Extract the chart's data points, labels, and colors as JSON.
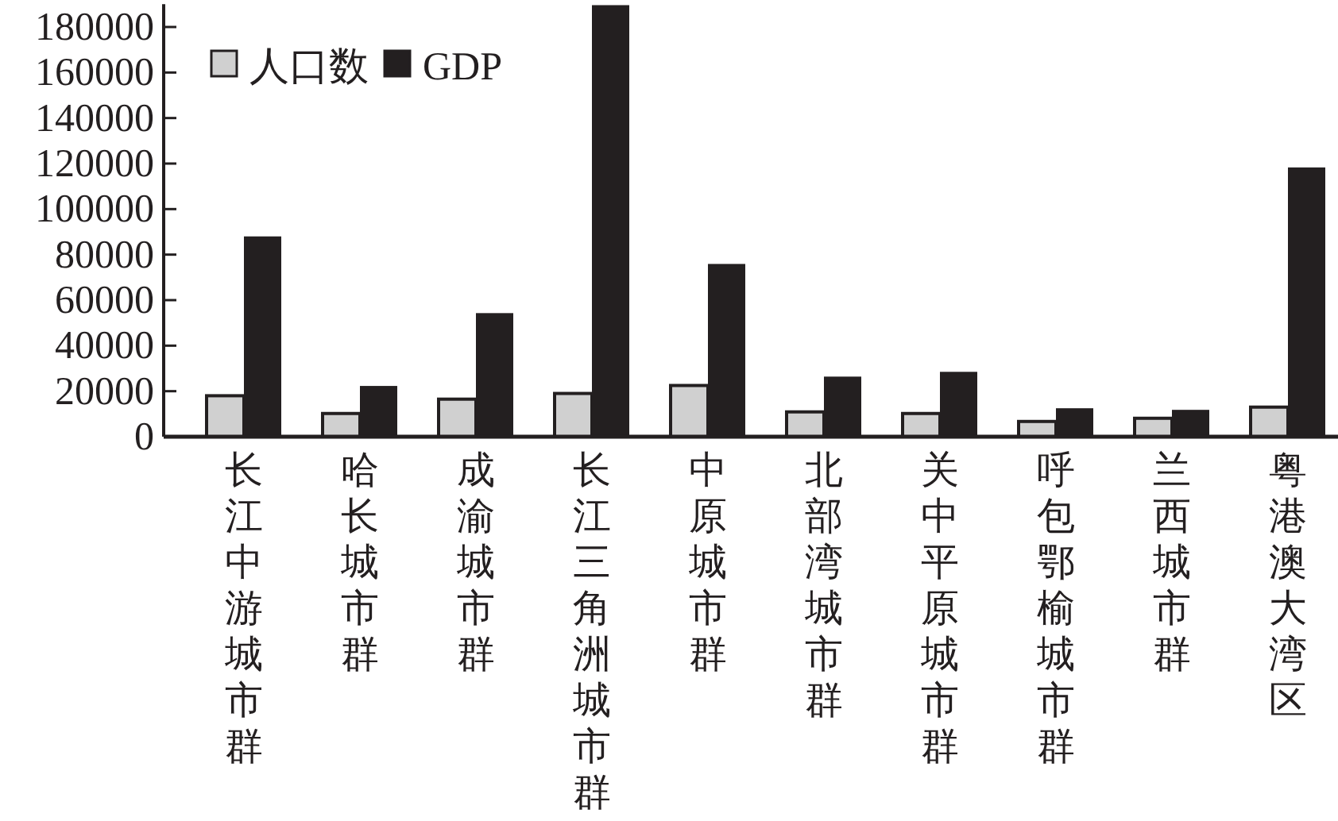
{
  "chart_data": {
    "type": "bar",
    "categories": [
      "长江中游城市群",
      "哈长城市群",
      "成渝城市群",
      "长江三角洲城市群",
      "中原城市群",
      "北部湾城市群",
      "关中平原城市群",
      "呼包鄂榆城市群",
      "兰西城市群",
      "粤港澳大湾区"
    ],
    "series": [
      {
        "name": "人口数",
        "color": "#d0d0d0",
        "values": [
          18000,
          10200,
          16500,
          19000,
          22500,
          10900,
          10200,
          6700,
          8100,
          13000
        ]
      },
      {
        "name": "GDP",
        "color": "#231f20",
        "values": [
          88000,
          22300,
          54300,
          189600,
          75900,
          26400,
          28500,
          12500,
          11800,
          118300
        ]
      }
    ],
    "ylim": [
      0,
      190000
    ],
    "yticks": [
      0,
      20000,
      40000,
      60000,
      80000,
      100000,
      120000,
      140000,
      160000,
      180000
    ],
    "grid": false,
    "legend": "top left"
  }
}
